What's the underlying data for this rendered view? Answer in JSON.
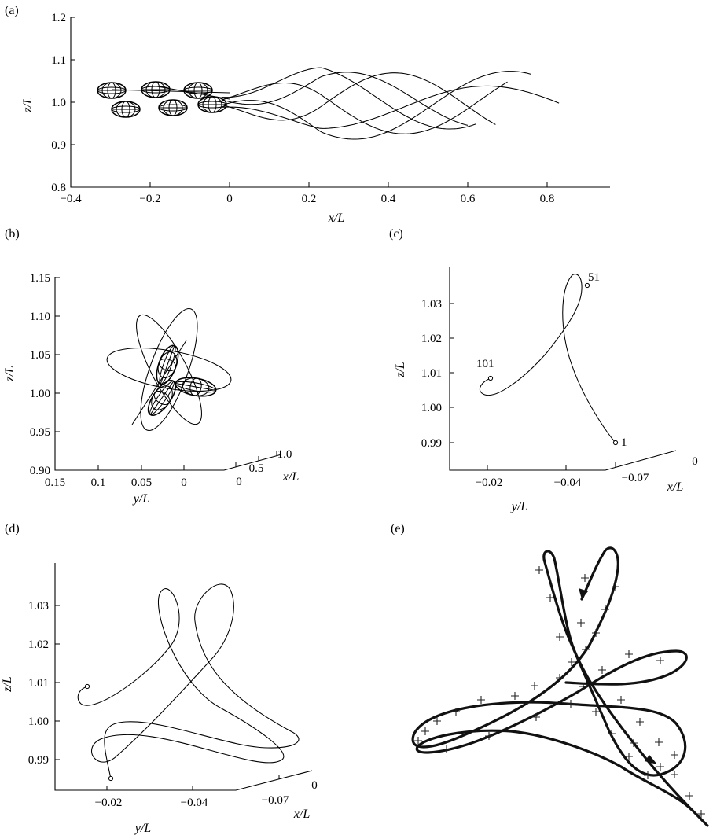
{
  "panels": {
    "a": {
      "label": "(a)",
      "xlabel": "x/L",
      "ylabel": "z/L",
      "xticks": [
        "−0.4",
        "−0.2",
        "0",
        "0.2",
        "0.4",
        "0.6",
        "0.8"
      ],
      "yticks": [
        "0.8",
        "0.9",
        "1.0",
        "1.1",
        "1.2"
      ]
    },
    "b": {
      "label": "(b)",
      "zlabel": "z/L",
      "ylabel": "y/L",
      "xlabel": "x/L",
      "zticks": [
        "0.90",
        "0.95",
        "1.00",
        "1.05",
        "1.10",
        "1.15"
      ],
      "yticks": [
        "0.15",
        "0.1",
        "0.05",
        "0"
      ],
      "xticks": [
        "0",
        "0.5",
        "1.0"
      ]
    },
    "c": {
      "label": "(c)",
      "zlabel": "z/L",
      "ylabel": "y/L",
      "xlabel": "x/L",
      "zticks": [
        "0.99",
        "1.00",
        "1.01",
        "1.02",
        "1.03"
      ],
      "yticks": [
        "−0.02",
        "−0.04"
      ],
      "xticks": [
        "−0.07",
        "0"
      ],
      "point_labels": [
        "1",
        "51",
        "101"
      ]
    },
    "d": {
      "label": "(d)",
      "zlabel": "z/L",
      "ylabel": "y/L",
      "xlabel": "x/L",
      "zticks": [
        "0.99",
        "1.00",
        "1.01",
        "1.02",
        "1.03"
      ],
      "yticks": [
        "−0.02",
        "−0.04"
      ],
      "xticks": [
        "−0.07",
        "0"
      ]
    },
    "e": {
      "label": "(e)"
    }
  },
  "chart_data": [
    {
      "panel": "a",
      "type": "line",
      "xlabel": "x/L",
      "ylabel": "z/L",
      "xlim": [
        -0.4,
        0.9
      ],
      "ylim": [
        0.8,
        1.2
      ],
      "description_values": {
        "start_x": 0.0,
        "end_x_range": [
          0.6,
          0.83
        ],
        "z_oscillation_range": [
          0.915,
          1.085
        ]
      }
    },
    {
      "panel": "b",
      "type": "line",
      "zlim": [
        0.9,
        1.15
      ],
      "ylim": [
        0,
        0.15
      ],
      "xlim": [
        0,
        1.0
      ]
    },
    {
      "panel": "c",
      "type": "line",
      "zlim": [
        0.99,
        1.03
      ],
      "points": [
        {
          "label": "1",
          "y": -0.045,
          "z": 0.991
        },
        {
          "label": "51",
          "y": -0.04,
          "z": 1.029
        },
        {
          "label": "101",
          "y": -0.019,
          "z": 1.0065
        }
      ]
    },
    {
      "panel": "d",
      "type": "line",
      "zlim": [
        0.99,
        1.03
      ]
    }
  ]
}
